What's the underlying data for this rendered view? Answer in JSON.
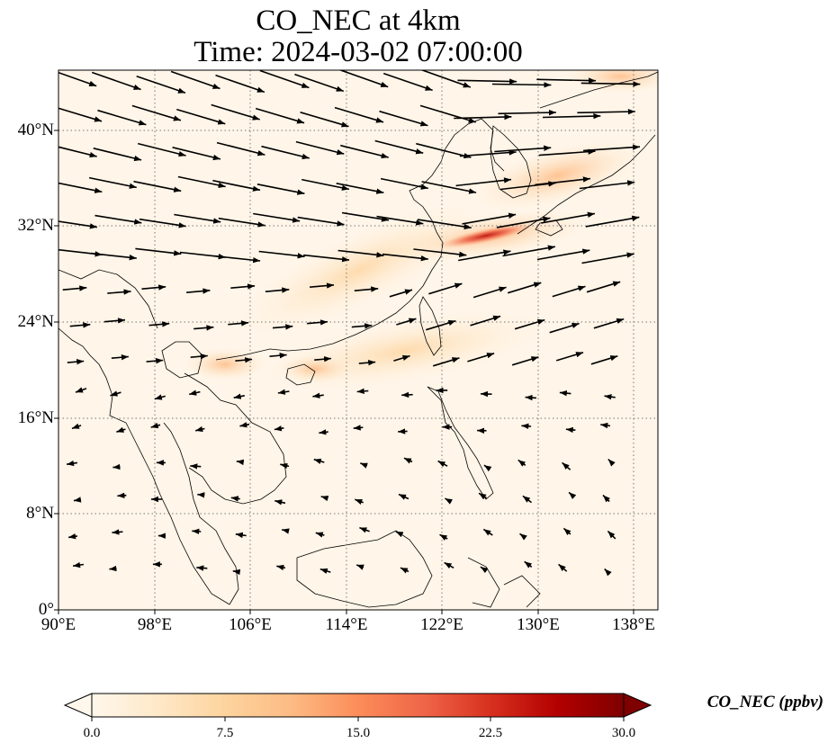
{
  "title": {
    "line1": "CO_NEC at 4km",
    "line2": "Time: 2024-03-02 07:00:00"
  },
  "map": {
    "extent": {
      "lon_min": 90,
      "lon_max": 140,
      "lat_min": 0,
      "lat_max": 45
    },
    "gridlines": "dotted",
    "lat_labels": [
      {
        "value": 40,
        "text": "40°N"
      },
      {
        "value": 32,
        "text": "32°N"
      },
      {
        "value": 24,
        "text": "24°N"
      },
      {
        "value": 16,
        "text": "16°N"
      },
      {
        "value": 8,
        "text": "8°N"
      },
      {
        "value": 0,
        "text": "0°"
      }
    ],
    "lon_labels": [
      {
        "value": 90,
        "text": "90°E"
      },
      {
        "value": 98,
        "text": "98°E"
      },
      {
        "value": 106,
        "text": "106°E"
      },
      {
        "value": 114,
        "text": "114°E"
      },
      {
        "value": 122,
        "text": "122°E"
      },
      {
        "value": 130,
        "text": "130°E"
      },
      {
        "value": 138,
        "text": "138°E"
      }
    ],
    "wind_vectors": "black arrows, westerly flow in north, weak in south",
    "field": "CO_NEC concentration (ppbv), highest plume over East China Sea near 31°N 126°E"
  },
  "colorbar": {
    "label": "CO_NEC (ppbv)",
    "colormap": "OrRd",
    "colors": [
      "#fff7ec",
      "#fee8c8",
      "#fdd49e",
      "#fdbb84",
      "#fc8d59",
      "#ef6548",
      "#d7301f",
      "#b30000",
      "#7f0000"
    ],
    "min": 0.0,
    "max": 30.0,
    "extend": "both",
    "ticks": [
      "0.0",
      "7.5",
      "15.0",
      "22.5",
      "30.0"
    ]
  },
  "colors": {
    "background_field": "#fff5e8",
    "coastline": "#000000",
    "arrow": "#000000",
    "gridline": "#777777"
  }
}
